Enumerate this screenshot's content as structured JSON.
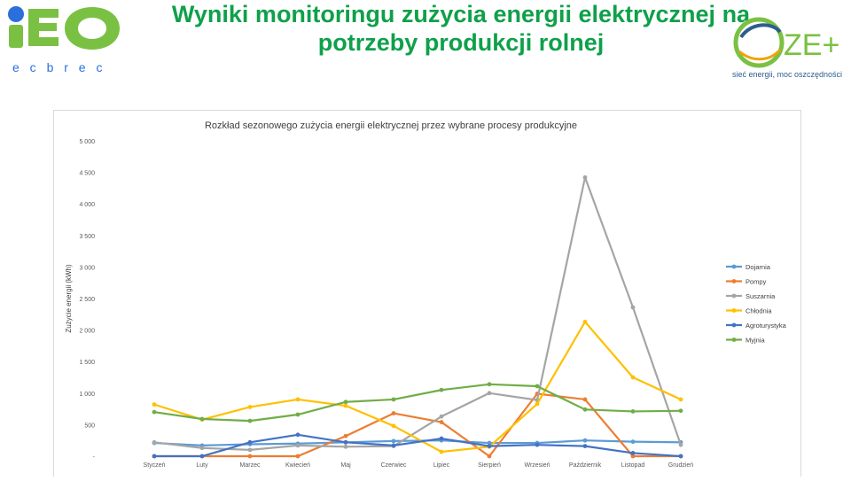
{
  "header": {
    "title_line1": "Wyniki monitoringu zużycia energii elektrycznej na",
    "title_line2": "potrzeby produkcji rolnej",
    "logo_left": {
      "text": "iEO",
      "subtext": "e c  b r e c"
    },
    "logo_right": {
      "text": "ZE+",
      "tagline": "sieć energii, moc oszczędności"
    }
  },
  "colors": {
    "title": "#0fa04a",
    "Dojarnia": "#5b9bd5",
    "Pompy": "#ed7d31",
    "Suszarnia": "#a5a5a5",
    "Chłodnia": "#ffc000",
    "Agroturystyka": "#4472c4",
    "Myjnia": "#70ad47"
  },
  "chart_data": {
    "type": "line",
    "title": "Rozkład sezonowego zużycia energii elektrycznej przez wybrane procesy produkcyjne",
    "xlabel": "",
    "ylabel": "Zużycie energii (kWh)",
    "ylim": [
      0,
      5000
    ],
    "yticks": [
      "-",
      "500",
      "1 000",
      "1 500",
      "2 000",
      "2 500",
      "3 000",
      "3 500",
      "4 000",
      "4 500",
      "5 000"
    ],
    "categories": [
      "Styczeń",
      "Luty",
      "Marzec",
      "Kwiecień",
      "Maj",
      "Czerwiec",
      "Lipiec",
      "Sierpień",
      "Wrzesień",
      "Październik",
      "Listopad",
      "Grudzień"
    ],
    "grid": false,
    "legend": "right",
    "series": [
      {
        "name": "Dojarnia",
        "values": [
          210,
          170,
          190,
          200,
          220,
          240,
          250,
          210,
          210,
          250,
          230,
          220
        ]
      },
      {
        "name": "Pompy",
        "values": [
          0,
          0,
          0,
          0,
          320,
          680,
          540,
          0,
          990,
          900,
          0,
          0
        ]
      },
      {
        "name": "Suszarnia",
        "values": [
          220,
          130,
          100,
          170,
          150,
          160,
          630,
          1000,
          890,
          4420,
          2360,
          180
        ]
      },
      {
        "name": "Chłodnia",
        "values": [
          820,
          580,
          780,
          900,
          800,
          480,
          70,
          150,
          830,
          2130,
          1250,
          900
        ]
      },
      {
        "name": "Agroturystyka",
        "values": [
          0,
          0,
          220,
          340,
          220,
          170,
          280,
          160,
          180,
          160,
          50,
          0
        ]
      },
      {
        "name": "Myjnia",
        "values": [
          700,
          590,
          560,
          660,
          860,
          900,
          1050,
          1140,
          1110,
          740,
          710,
          720
        ]
      }
    ]
  }
}
